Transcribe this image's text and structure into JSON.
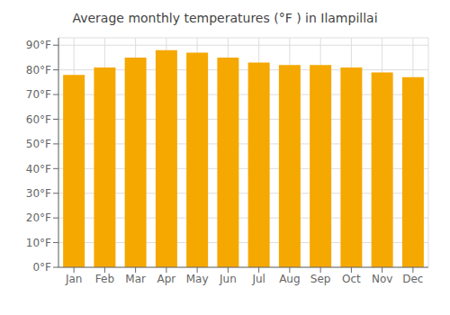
{
  "chart_data": {
    "type": "bar",
    "title": "Average monthly temperatures (°F ) in Ilampillai",
    "categories": [
      "Jan",
      "Feb",
      "Mar",
      "Apr",
      "May",
      "Jun",
      "Jul",
      "Aug",
      "Sep",
      "Oct",
      "Nov",
      "Dec"
    ],
    "values": [
      78,
      81,
      85,
      88,
      87,
      85,
      83,
      82,
      82,
      81,
      79,
      77
    ],
    "color": "#F5A800",
    "ylim": [
      0,
      93
    ],
    "yticks": [
      {
        "value": 0,
        "label": "0°F"
      },
      {
        "value": 10,
        "label": "10°F"
      },
      {
        "value": 20,
        "label": "20°F"
      },
      {
        "value": 30,
        "label": "30°F"
      },
      {
        "value": 40,
        "label": "40°F"
      },
      {
        "value": 50,
        "label": "50°F"
      },
      {
        "value": 60,
        "label": "60°F"
      },
      {
        "value": 70,
        "label": "70°F"
      },
      {
        "value": 80,
        "label": "80°F"
      },
      {
        "value": 90,
        "label": "90°F"
      }
    ],
    "grid": true
  }
}
